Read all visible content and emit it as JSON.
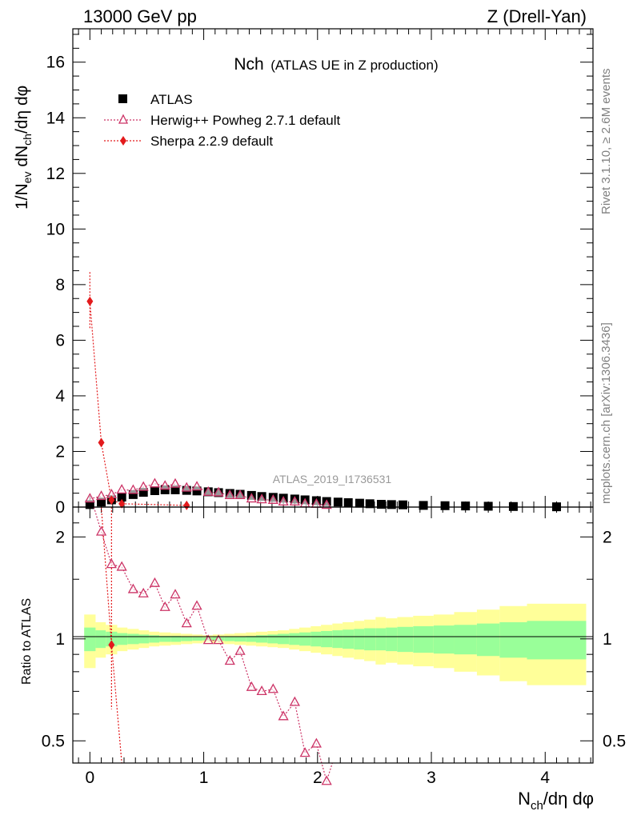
{
  "header": {
    "left": "13000 GeV pp",
    "right": "Z (Drell-Yan)"
  },
  "plot_title": {
    "main": "Nch",
    "sub": "(ATLAS UE in Z production)"
  },
  "side_labels": {
    "rivet": "Rivet 3.1.10, ≥ 2.6M events",
    "mcplots": "mcplots.cern.ch [arXiv:1306.3436]"
  },
  "watermark": "ATLAS_2019_I1736531",
  "axis": {
    "ylabel_main": "1/N_ev dN_ch/dη dφ",
    "ylabel_ratio": "Ratio to ATLAS",
    "xlabel": "N_ch/dη dφ"
  },
  "colors": {
    "data": "#000000",
    "herwig": "#cc3366",
    "sherpa": "#e31a1c",
    "band_inner": "#99ff99",
    "band_outer": "#ffff99"
  },
  "legend": [
    {
      "label": "ATLAS",
      "marker": "filled-square"
    },
    {
      "label": "Herwig++ Powheg 2.7.1 default",
      "marker": "open-triangle"
    },
    {
      "label": "Sherpa 2.2.9 default",
      "marker": "filled-diamond"
    }
  ],
  "chart_data": {
    "type": "scatter",
    "main": {
      "xlim": [
        -0.15,
        4.42
      ],
      "ylim": [
        0,
        17.2
      ],
      "yticks": [
        0,
        2,
        4,
        6,
        8,
        10,
        12,
        14,
        16
      ],
      "ytick_labels": [
        "0",
        "2",
        "4",
        "6",
        "8",
        "10",
        "12",
        "14",
        "16"
      ],
      "xticks": [
        0,
        1,
        2,
        3,
        4
      ],
      "series": [
        {
          "name": "ATLAS",
          "x": [
            0.0,
            0.1,
            0.19,
            0.28,
            0.38,
            0.47,
            0.57,
            0.66,
            0.75,
            0.85,
            0.94,
            1.04,
            1.13,
            1.23,
            1.32,
            1.42,
            1.51,
            1.61,
            1.7,
            1.8,
            1.89,
            1.99,
            2.08,
            2.18,
            2.27,
            2.37,
            2.46,
            2.56,
            2.65,
            2.75,
            2.93,
            3.12,
            3.3,
            3.5,
            3.72,
            4.1
          ],
          "y": [
            0.09,
            0.18,
            0.26,
            0.36,
            0.45,
            0.53,
            0.59,
            0.62,
            0.62,
            0.6,
            0.58,
            0.55,
            0.52,
            0.49,
            0.46,
            0.42,
            0.38,
            0.35,
            0.32,
            0.29,
            0.26,
            0.23,
            0.2,
            0.18,
            0.16,
            0.14,
            0.12,
            0.1,
            0.09,
            0.08,
            0.06,
            0.05,
            0.04,
            0.03,
            0.02,
            0.01
          ]
        },
        {
          "name": "Herwig++ Powheg 2.7.1 default",
          "x": [
            0.0,
            0.1,
            0.19,
            0.28,
            0.38,
            0.47,
            0.57,
            0.66,
            0.75,
            0.85,
            0.94,
            1.04,
            1.13,
            1.23,
            1.32,
            1.42,
            1.51,
            1.61,
            1.7,
            1.8,
            1.89,
            1.99,
            2.08
          ],
          "y": [
            0.3,
            0.39,
            0.45,
            0.62,
            0.61,
            0.72,
            0.84,
            0.76,
            0.83,
            0.69,
            0.73,
            0.54,
            0.52,
            0.42,
            0.42,
            0.3,
            0.27,
            0.25,
            0.19,
            0.19,
            0.12,
            0.11,
            0.07
          ]
        },
        {
          "name": "Sherpa 2.2.9 default",
          "x": [
            0.0,
            0.1,
            0.19,
            0.28,
            0.85
          ],
          "y": [
            7.4,
            2.32,
            0.25,
            0.12,
            0.06
          ]
        }
      ]
    },
    "ratio": {
      "ylim": [
        0.43,
        2.45
      ],
      "ytick_labels": [
        "0.5",
        "1",
        "2"
      ],
      "yticks": [
        0.5,
        1,
        2
      ],
      "band_edges": [
        -0.05,
        0.05,
        0.14,
        0.24,
        0.33,
        0.43,
        0.52,
        0.61,
        0.71,
        0.8,
        0.9,
        0.99,
        1.08,
        1.18,
        1.27,
        1.37,
        1.46,
        1.56,
        1.65,
        1.75,
        1.84,
        1.94,
        2.03,
        2.13,
        2.22,
        2.32,
        2.41,
        2.51,
        2.6,
        2.7,
        2.84,
        3.02,
        3.2,
        3.4,
        3.6,
        3.84,
        4.36
      ],
      "band_inner_half": [
        0.08,
        0.06,
        0.05,
        0.04,
        0.035,
        0.03,
        0.025,
        0.02,
        0.02,
        0.015,
        0.012,
        0.01,
        0.012,
        0.015,
        0.018,
        0.02,
        0.025,
        0.03,
        0.035,
        0.04,
        0.045,
        0.05,
        0.055,
        0.06,
        0.065,
        0.07,
        0.075,
        0.075,
        0.08,
        0.085,
        0.09,
        0.095,
        0.1,
        0.11,
        0.12,
        0.13
      ],
      "band_outer_half": [
        0.18,
        0.12,
        0.1,
        0.08,
        0.07,
        0.06,
        0.05,
        0.045,
        0.04,
        0.035,
        0.03,
        0.025,
        0.03,
        0.035,
        0.04,
        0.045,
        0.05,
        0.055,
        0.06,
        0.07,
        0.08,
        0.09,
        0.1,
        0.11,
        0.12,
        0.13,
        0.14,
        0.16,
        0.15,
        0.16,
        0.17,
        0.18,
        0.2,
        0.22,
        0.25,
        0.27
      ],
      "series": [
        {
          "name": "Herwig++ Powheg 2.7.1 default",
          "x": [
            0.1,
            0.19,
            0.28,
            0.38,
            0.47,
            0.57,
            0.66,
            0.75,
            0.85,
            0.94,
            1.04,
            1.13,
            1.23,
            1.32,
            1.42,
            1.51,
            1.61,
            1.7,
            1.8,
            1.89,
            1.99,
            2.08
          ],
          "y": [
            2.07,
            1.66,
            1.63,
            1.4,
            1.36,
            1.46,
            1.24,
            1.35,
            1.11,
            1.25,
            0.99,
            0.99,
            0.86,
            0.92,
            0.72,
            0.7,
            0.71,
            0.59,
            0.65,
            0.46,
            0.49,
            0.38
          ]
        },
        {
          "name": "Sherpa 2.2.9 default",
          "x": [
            0.19
          ],
          "y": [
            0.96
          ]
        }
      ]
    }
  }
}
